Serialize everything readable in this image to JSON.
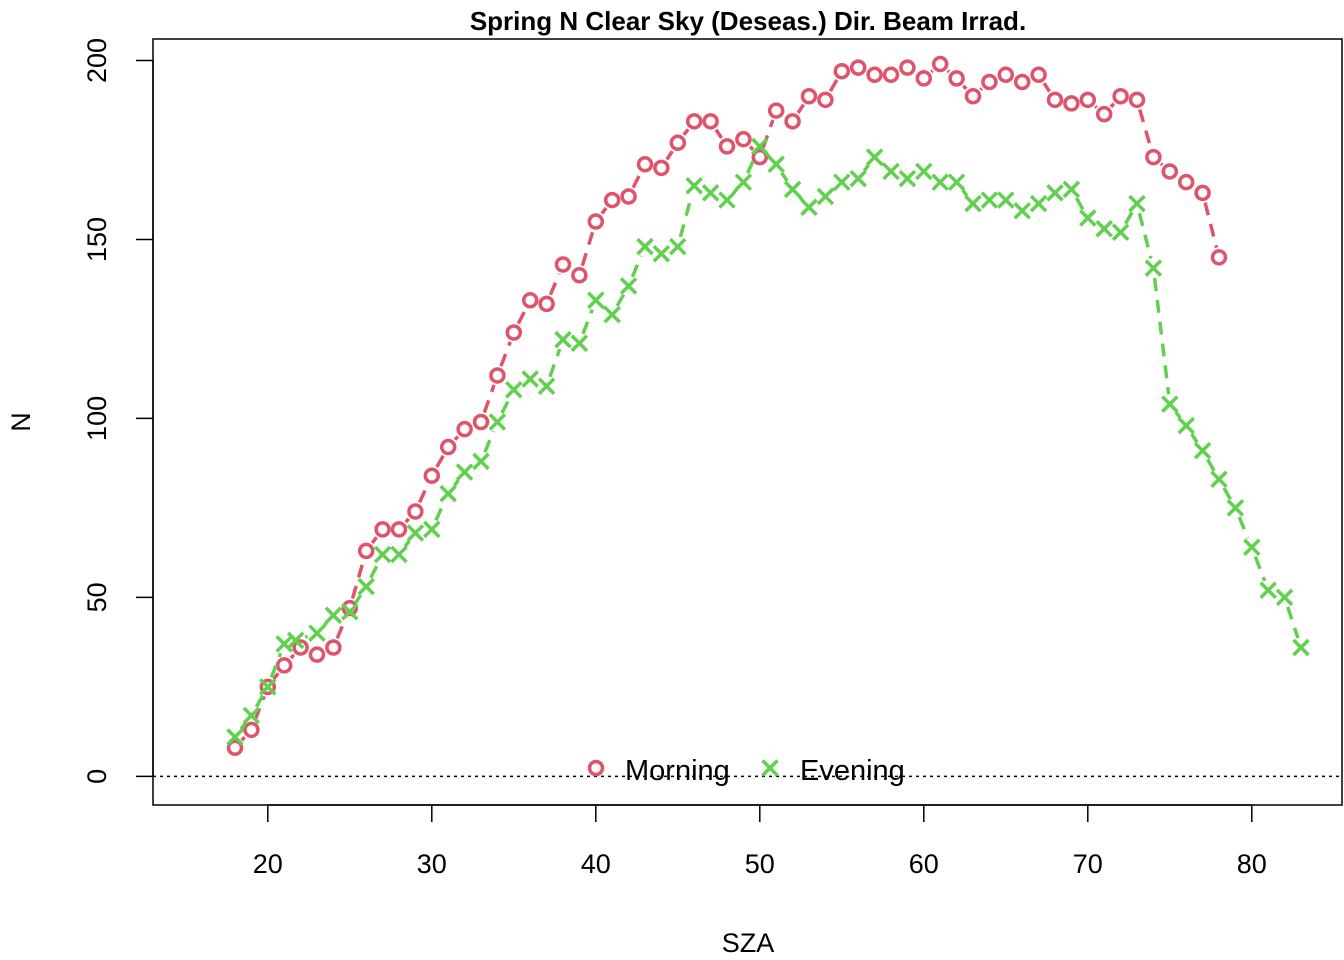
{
  "chart_data": {
    "type": "line",
    "title": "Spring N Clear Sky (Deseas.) Dir. Beam Irrad.",
    "xlabel": "SZA",
    "ylabel": "N",
    "xlim": [
      13,
      85.5
    ],
    "ylim": [
      -8,
      206
    ],
    "xticks": [
      20,
      30,
      40,
      50,
      60,
      70,
      80
    ],
    "yticks": [
      0,
      50,
      100,
      150,
      200
    ],
    "reference_line": 0,
    "legend_position": "bottom-center",
    "series": [
      {
        "name": "Morning",
        "color": "#DF536B",
        "marker": "circle",
        "line_style": "dashed",
        "x": [
          18,
          19,
          20,
          21,
          22,
          23,
          24,
          25,
          26,
          27,
          28,
          29,
          30,
          31,
          32,
          33,
          34,
          35,
          36,
          37,
          38,
          39,
          40,
          41,
          42,
          43,
          44,
          45,
          46,
          47,
          48,
          49,
          50,
          51,
          52,
          53,
          54,
          55,
          56,
          57,
          58,
          59,
          60,
          61,
          62,
          63,
          64,
          65,
          66,
          67,
          68,
          69,
          70,
          71,
          72,
          73,
          74,
          75,
          76,
          77,
          78
        ],
        "values": [
          8,
          13,
          25,
          31,
          36,
          34,
          36,
          47,
          63,
          69,
          69,
          74,
          84,
          92,
          97,
          99,
          112,
          124,
          133,
          132,
          143,
          140,
          155,
          161,
          162,
          171,
          170,
          177,
          183,
          183,
          176,
          178,
          173,
          186,
          183,
          190,
          189,
          197,
          198,
          196,
          196,
          198,
          195,
          199,
          195,
          190,
          194,
          196,
          194,
          196,
          189,
          188,
          189,
          185,
          190,
          189,
          173,
          169,
          166,
          163,
          145
        ]
      },
      {
        "name": "Evening",
        "color": "#61D04F",
        "marker": "x",
        "line_style": "dashed",
        "x": [
          18,
          19,
          20,
          21,
          21.7,
          23,
          24,
          25,
          26,
          27,
          28,
          29,
          30,
          31,
          32,
          33,
          34,
          35,
          36,
          37,
          38,
          39,
          40,
          41,
          42,
          43,
          44,
          45,
          46,
          47,
          48,
          49,
          50,
          51,
          52,
          53,
          54,
          55,
          56,
          57,
          58,
          59,
          60,
          61,
          62,
          63,
          64,
          65,
          66,
          67,
          68,
          69,
          70,
          71,
          72,
          73,
          74,
          75,
          76,
          77,
          78,
          79,
          80,
          81,
          82,
          83
        ],
        "values": [
          11,
          17,
          25,
          37,
          38,
          40,
          45,
          46,
          53,
          62,
          62,
          68,
          69,
          79,
          85,
          88,
          99,
          108,
          111,
          109,
          122,
          121,
          133,
          129,
          137,
          148,
          146,
          148,
          165,
          163,
          161,
          166,
          176,
          171,
          164,
          159,
          162,
          166,
          167,
          173,
          169,
          167,
          169,
          166,
          166,
          160,
          161,
          161,
          158,
          160,
          163,
          164,
          156,
          153,
          152,
          160,
          142,
          104,
          98,
          91,
          83,
          75,
          64,
          52,
          50,
          36
        ]
      }
    ]
  }
}
